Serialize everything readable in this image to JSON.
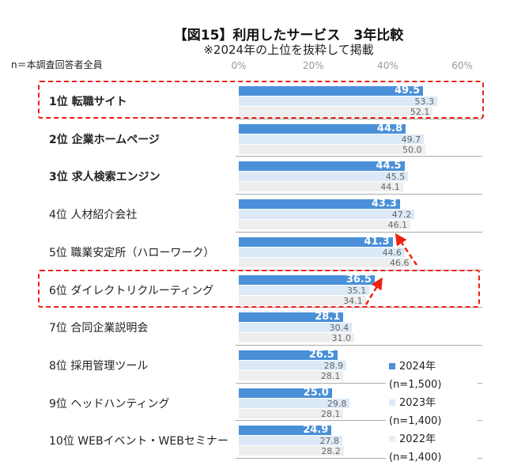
{
  "chart_data": {
    "type": "bar",
    "orientation": "horizontal",
    "title": "【図15】利用したサービス　3年比較",
    "subtitle": "※2024年の上位を抜粋して掲載",
    "note": "n＝本調査回答者全員",
    "xlim": [
      0,
      60
    ],
    "xticks": [
      "0%",
      "20%",
      "40%",
      "60%"
    ],
    "categories": [
      "1位 転職サイト",
      "2位 企業ホームページ",
      "3位 求人検索エンジン",
      "4位 人材紹介会社",
      "5位 職業安定所（ハローワーク）",
      "6位 ダイレクトリクルーティング",
      "7位 合同企業説明会",
      "8位 採用管理ツール",
      "9位 ヘッドハンティング",
      "10位 WEBイベント・WEBセミナー"
    ],
    "bold_categories": [
      0,
      1,
      2
    ],
    "highlighted": [
      0,
      5
    ],
    "series": [
      {
        "name": "2024年",
        "legend_n": "(n=1,500)",
        "color": "#4a90d9",
        "values": [
          49.5,
          44.8,
          44.5,
          43.3,
          41.3,
          36.5,
          28.1,
          26.5,
          25.0,
          24.9
        ]
      },
      {
        "name": "2023年",
        "legend_n": "(n=1,400)",
        "color": "#dce9f7",
        "values": [
          53.3,
          49.7,
          45.5,
          47.2,
          44.6,
          35.1,
          30.4,
          28.9,
          29.8,
          27.8
        ]
      },
      {
        "name": "2022年",
        "legend_n": "(n=1,400)",
        "color": "#eeeeee",
        "values": [
          52.1,
          50.0,
          44.1,
          46.1,
          46.6,
          34.1,
          31.0,
          28.1,
          28.1,
          28.2
        ]
      }
    ],
    "grid": false,
    "legend": "bottom-right",
    "highlight_color": "#e21111"
  }
}
